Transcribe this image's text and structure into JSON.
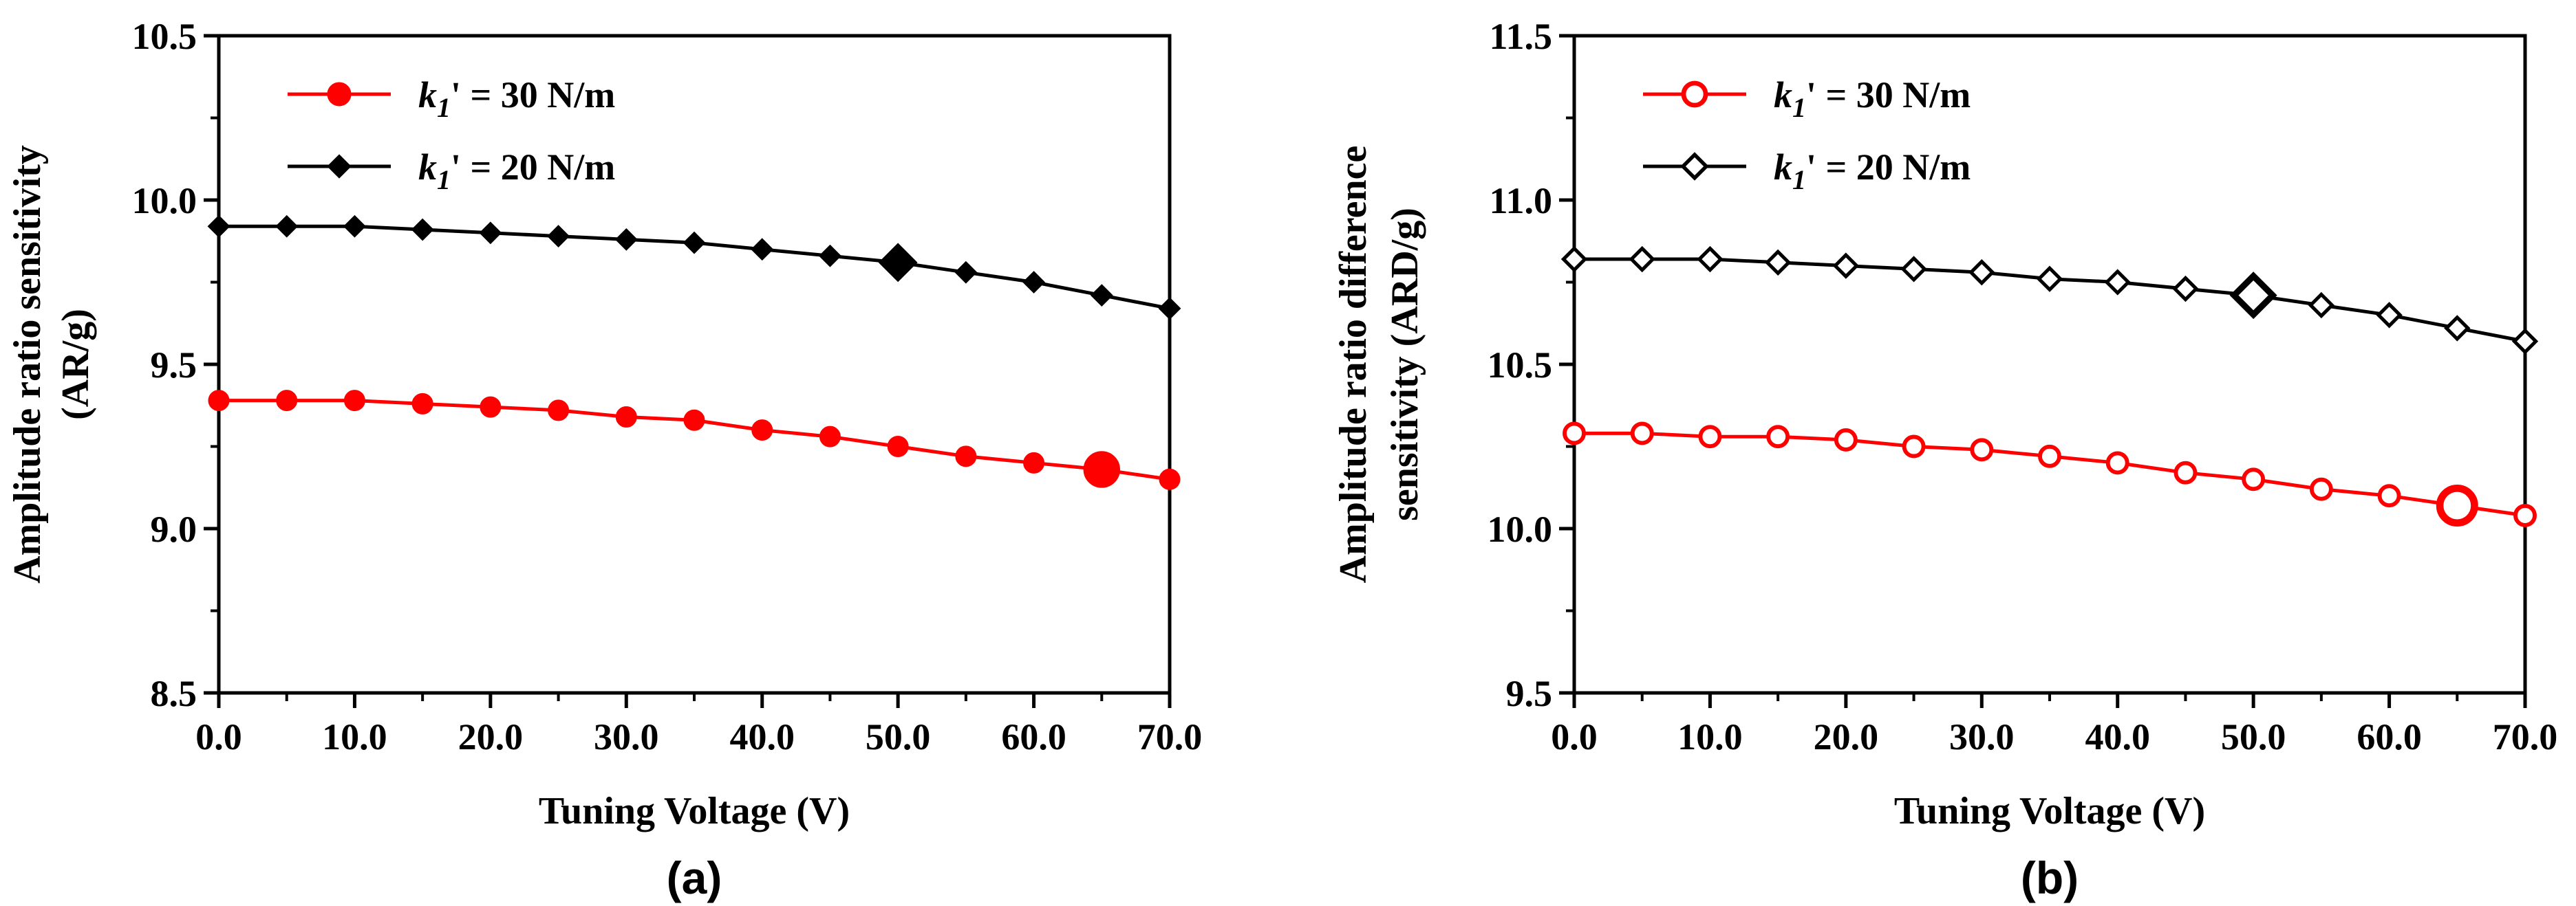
{
  "colors": {
    "red": "#ff0000",
    "black": "#000000"
  },
  "chart_data": [
    {
      "type": "line",
      "panel_label": "(a)",
      "xlabel": "Tuning Voltage (V)",
      "ylabel_lines": [
        "Amplitude ratio sensitivity",
        "(AR/g)"
      ],
      "xlim": [
        0,
        70
      ],
      "ylim": [
        8.5,
        10.5
      ],
      "x_ticks": [
        "0.0",
        "10.0",
        "20.0",
        "30.0",
        "40.0",
        "50.0",
        "60.0",
        "70.0"
      ],
      "y_ticks": [
        "8.5",
        "9.0",
        "9.5",
        "10.0",
        "10.5"
      ],
      "grid": false,
      "legend_position": "top-left",
      "x": [
        0,
        5,
        10,
        15,
        20,
        25,
        30,
        35,
        40,
        45,
        50,
        55,
        60,
        65,
        70
      ],
      "series": [
        {
          "name_parts": [
            "k",
            "1",
            "' = 30 N/m"
          ],
          "color": "#ff0000",
          "marker": "filled-circle",
          "values": [
            9.39,
            9.39,
            9.39,
            9.38,
            9.37,
            9.36,
            9.34,
            9.33,
            9.3,
            9.28,
            9.25,
            9.22,
            9.2,
            9.18,
            9.15
          ],
          "highlight_x": 65
        },
        {
          "name_parts": [
            "k",
            "1",
            "' = 20 N/m"
          ],
          "color": "#000000",
          "marker": "filled-diamond",
          "values": [
            9.92,
            9.92,
            9.92,
            9.91,
            9.9,
            9.89,
            9.88,
            9.87,
            9.85,
            9.83,
            9.81,
            9.78,
            9.75,
            9.71,
            9.67
          ],
          "highlight_x": 50
        }
      ]
    },
    {
      "type": "line",
      "panel_label": "(b)",
      "xlabel": "Tuning Voltage (V)",
      "ylabel_lines": [
        "Amplitude ratio difference",
        "sensitivity (ARD/g)"
      ],
      "xlim": [
        0,
        70
      ],
      "ylim": [
        9.5,
        11.5
      ],
      "x_ticks": [
        "0.0",
        "10.0",
        "20.0",
        "30.0",
        "40.0",
        "50.0",
        "60.0",
        "70.0"
      ],
      "y_ticks": [
        "9.5",
        "10.0",
        "10.5",
        "11.0",
        "11.5"
      ],
      "grid": false,
      "legend_position": "top-left",
      "x": [
        0,
        5,
        10,
        15,
        20,
        25,
        30,
        35,
        40,
        45,
        50,
        55,
        60,
        65,
        70
      ],
      "series": [
        {
          "name_parts": [
            "k",
            "1",
            "' = 30 N/m"
          ],
          "color": "#ff0000",
          "marker": "open-circle",
          "values": [
            10.29,
            10.29,
            10.28,
            10.28,
            10.27,
            10.25,
            10.24,
            10.22,
            10.2,
            10.17,
            10.15,
            10.12,
            10.1,
            10.07,
            10.04
          ],
          "highlight_x": 65
        },
        {
          "name_parts": [
            "k",
            "1",
            "' = 20 N/m"
          ],
          "color": "#000000",
          "marker": "open-diamond",
          "values": [
            10.82,
            10.82,
            10.82,
            10.81,
            10.8,
            10.79,
            10.78,
            10.76,
            10.75,
            10.73,
            10.71,
            10.68,
            10.65,
            10.61,
            10.57
          ],
          "highlight_x": 50
        }
      ]
    }
  ]
}
